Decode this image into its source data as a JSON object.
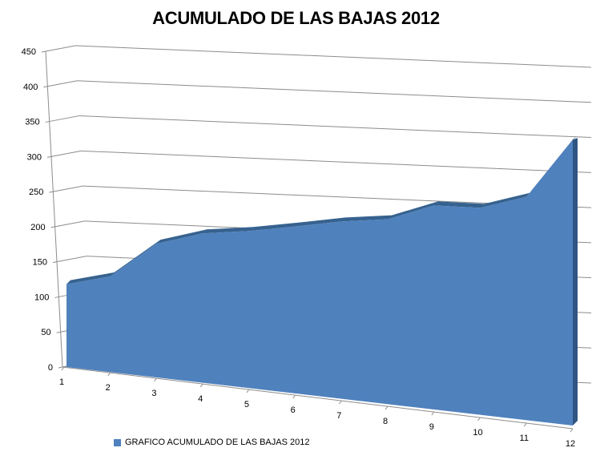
{
  "chart_data": {
    "type": "area",
    "title": "ACUMULADO DE LAS BAJAS 2012",
    "categories": [
      "1",
      "2",
      "3",
      "4",
      "5",
      "6",
      "7",
      "8",
      "9",
      "10",
      "11",
      "12"
    ],
    "series": [
      {
        "name": "GRAFICO ACUMULADO DE LAS BAJAS 2012",
        "values": [
          118,
          128,
          178,
          195,
          203,
          214,
          228,
          238,
          260,
          268,
          293,
          388
        ]
      }
    ],
    "y_ticks": [
      "0",
      "50",
      "100",
      "150",
      "200",
      "250",
      "300",
      "350",
      "400",
      "450"
    ],
    "ylim": [
      0,
      450
    ],
    "grid": true,
    "legend_position": "bottom-left",
    "colors": {
      "area": "#4f81bd",
      "area_side": "#2f5582",
      "grid": "#8c8c8c"
    }
  }
}
